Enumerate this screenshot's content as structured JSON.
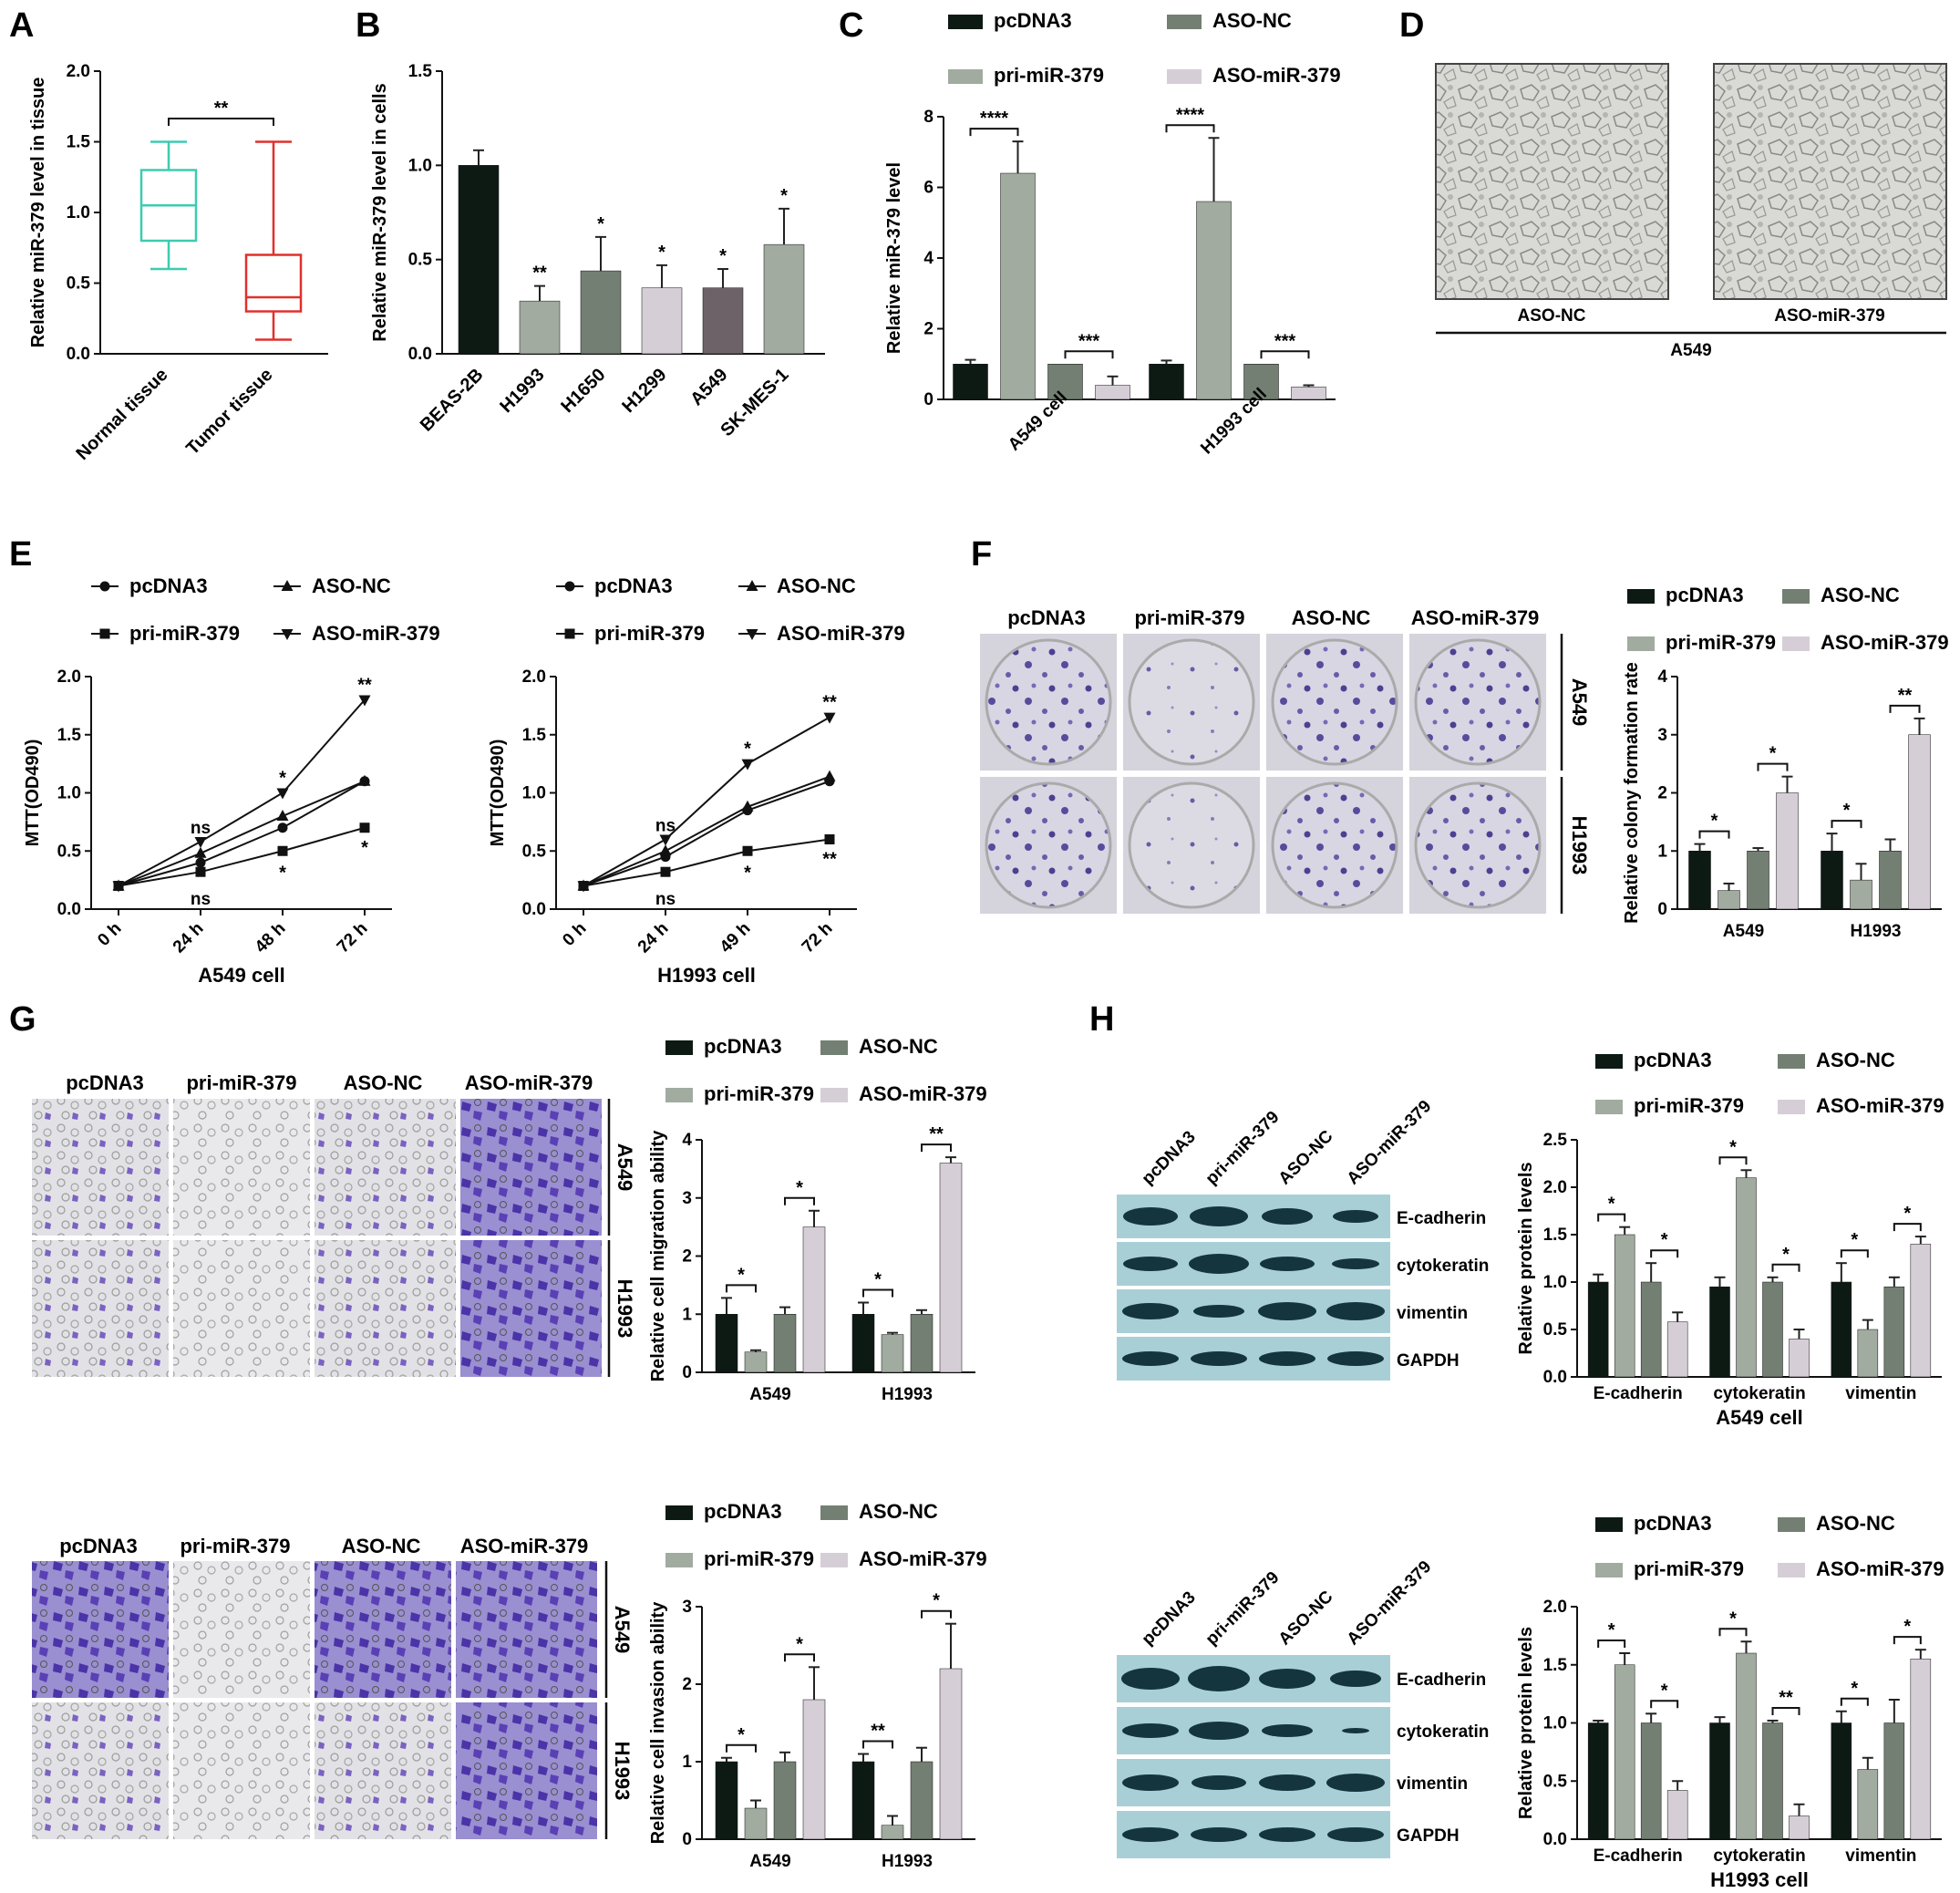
{
  "panels": {
    "A": {
      "label": "A"
    },
    "B": {
      "label": "B"
    },
    "C": {
      "label": "C"
    },
    "D": {
      "label": "D",
      "images": [
        "ASO-NC",
        "ASO-miR-379"
      ],
      "group": "A549"
    },
    "E": {
      "label": "E"
    },
    "F": {
      "label": "F",
      "image_cols": [
        "pcDNA3",
        "pri-miR-379",
        "ASO-NC",
        "ASO-miR-379"
      ],
      "image_rows": [
        "A549",
        "H1993"
      ]
    },
    "G": {
      "label": "G",
      "image_cols": [
        "pcDNA3",
        "pri-miR-379",
        "ASO-NC",
        "ASO-miR-379"
      ],
      "image_rows": [
        "A549",
        "H1993"
      ]
    },
    "G2": {
      "image_cols": [
        "pcDNA3",
        "pri-miR-379",
        "ASO-NC",
        "ASO-miR-379"
      ],
      "image_rows": [
        "A549",
        "H1993"
      ]
    },
    "H": {
      "label": "H",
      "lanes": [
        "pcDNA3",
        "pri-miR-379",
        "ASO-NC",
        "ASO-miR-379"
      ],
      "bands": [
        "E-cadherin",
        "cytokeratin",
        "vimentin",
        "GAPDH"
      ]
    }
  },
  "colors": {
    "pcDNA3": "#0d1a14",
    "ASO-NC": "#737f72",
    "pri-miR-379": "#a1aba0",
    "ASO-miR-379": "#d6ced6",
    "A549bar": "#6c6268",
    "tealbox": "#3ecbb0",
    "redbox": "#e0302c"
  },
  "chart_data": [
    {
      "id": "A",
      "type": "box",
      "ylabel": "Relative miR-379 level in tissue",
      "ylim": [
        0,
        2.0
      ],
      "yticks": [
        "0.0",
        "0.5",
        "1.0",
        "1.5",
        "2.0"
      ],
      "categories": [
        "Normal tissue",
        "Tumor tissue"
      ],
      "boxes": [
        {
          "min": 0.6,
          "q1": 0.8,
          "median": 1.05,
          "q3": 1.3,
          "max": 1.5
        },
        {
          "min": 0.1,
          "q1": 0.3,
          "median": 0.4,
          "q3": 0.7,
          "max": 1.5
        }
      ],
      "sig": "**"
    },
    {
      "id": "B",
      "type": "bar",
      "ylabel": "Relative miR-379 level in cells",
      "ylim": [
        0,
        1.5
      ],
      "yticks": [
        "0.0",
        "0.5",
        "1.0",
        "1.5"
      ],
      "categories": [
        "BEAS-2B",
        "H1993",
        "H1650",
        "H1299",
        "A549",
        "SK-MES-1"
      ],
      "values": [
        1.0,
        0.28,
        0.44,
        0.35,
        0.35,
        0.58
      ],
      "errors": [
        0.08,
        0.08,
        0.18,
        0.12,
        0.1,
        0.19
      ],
      "sig": [
        "",
        "**",
        "*",
        "*",
        "*",
        "*"
      ]
    },
    {
      "id": "C",
      "type": "bar",
      "ylabel": "Relative miR-379 level",
      "ylim": [
        0,
        8
      ],
      "yticks": [
        "0",
        "2",
        "4",
        "6",
        "8"
      ],
      "groups": [
        "A549 cell",
        "H1993 cell"
      ],
      "series": [
        {
          "name": "pcDNA3",
          "values": [
            1.0,
            1.0
          ],
          "errors": [
            0.12,
            0.1
          ]
        },
        {
          "name": "pri-miR-379",
          "values": [
            6.4,
            5.6
          ],
          "errors": [
            0.9,
            1.8
          ]
        },
        {
          "name": "ASO-NC",
          "values": [
            1.0,
            1.0
          ],
          "errors": [
            0,
            0
          ]
        },
        {
          "name": "ASO-miR-379",
          "values": [
            0.4,
            0.35
          ],
          "errors": [
            0.25,
            0.05
          ]
        }
      ],
      "legend": [
        "pcDNA3",
        "ASO-NC",
        "pri-miR-379",
        "ASO-miR-379"
      ],
      "sig": [
        "****",
        "***",
        "****",
        "***"
      ]
    },
    {
      "id": "E1",
      "type": "line",
      "ylabel": "MTT(OD490)",
      "xlabel": "A549 cell",
      "ylim": [
        0,
        2.0
      ],
      "yticks": [
        "0.0",
        "0.5",
        "1.0",
        "1.5",
        "2.0"
      ],
      "x": [
        "0 h",
        "24 h",
        "48 h",
        "72 h"
      ],
      "series": [
        {
          "name": "pcDNA3",
          "values": [
            0.2,
            0.4,
            0.7,
            1.1
          ]
        },
        {
          "name": "pri-miR-379",
          "values": [
            0.2,
            0.32,
            0.5,
            0.7
          ]
        },
        {
          "name": "ASO-NC",
          "values": [
            0.2,
            0.48,
            0.8,
            1.1
          ]
        },
        {
          "name": "ASO-miR-379",
          "values": [
            0.2,
            0.58,
            1.0,
            1.8
          ]
        }
      ],
      "annotations": [
        "ns",
        "*",
        "**",
        "ns",
        "*",
        "*"
      ]
    },
    {
      "id": "E2",
      "type": "line",
      "ylabel": "MTT(OD490)",
      "xlabel": "H1993 cell",
      "ylim": [
        0,
        2.0
      ],
      "yticks": [
        "0.0",
        "0.5",
        "1.0",
        "1.5",
        "2.0"
      ],
      "x": [
        "0 h",
        "24 h",
        "49 h",
        "72 h"
      ],
      "series": [
        {
          "name": "pcDNA3",
          "values": [
            0.2,
            0.45,
            0.85,
            1.1
          ]
        },
        {
          "name": "pri-miR-379",
          "values": [
            0.2,
            0.32,
            0.5,
            0.6
          ]
        },
        {
          "name": "ASO-NC",
          "values": [
            0.2,
            0.5,
            0.88,
            1.14
          ]
        },
        {
          "name": "ASO-miR-379",
          "values": [
            0.2,
            0.6,
            1.25,
            1.65
          ]
        }
      ],
      "annotations": [
        "ns",
        "*",
        "**",
        "ns",
        "*",
        "**"
      ]
    },
    {
      "id": "F",
      "type": "bar",
      "ylabel": "Relative colony formation rate",
      "ylim": [
        0,
        4
      ],
      "yticks": [
        "0",
        "1",
        "2",
        "3",
        "4"
      ],
      "groups": [
        "A549",
        "H1993"
      ],
      "series": [
        {
          "name": "pcDNA3",
          "values": [
            1.0,
            1.0
          ],
          "errors": [
            0.12,
            0.3
          ]
        },
        {
          "name": "pri-miR-379",
          "values": [
            0.32,
            0.5
          ],
          "errors": [
            0.12,
            0.28
          ]
        },
        {
          "name": "ASO-NC",
          "values": [
            1.0,
            1.0
          ],
          "errors": [
            0.05,
            0.2
          ]
        },
        {
          "name": "ASO-miR-379",
          "values": [
            2.0,
            3.0
          ],
          "errors": [
            0.28,
            0.28
          ]
        }
      ],
      "legend": [
        "pcDNA3",
        "ASO-NC",
        "pri-miR-379",
        "ASO-miR-379"
      ],
      "sig": [
        "*",
        "*",
        "*",
        "**"
      ]
    },
    {
      "id": "G1",
      "type": "bar",
      "ylabel": "Relative cell migration ability",
      "ylim": [
        0,
        4
      ],
      "yticks": [
        "0",
        "1",
        "2",
        "3",
        "4"
      ],
      "groups": [
        "A549",
        "H1993"
      ],
      "series": [
        {
          "name": "pcDNA3",
          "values": [
            1.0,
            1.0
          ],
          "errors": [
            0.28,
            0.2
          ]
        },
        {
          "name": "pri-miR-379",
          "values": [
            0.35,
            0.65
          ],
          "errors": [
            0.03,
            0.03
          ]
        },
        {
          "name": "ASO-NC",
          "values": [
            1.0,
            1.0
          ],
          "errors": [
            0.12,
            0.07
          ]
        },
        {
          "name": "ASO-miR-379",
          "values": [
            2.5,
            3.6
          ],
          "errors": [
            0.28,
            0.1
          ]
        }
      ],
      "legend": [
        "pcDNA3",
        "ASO-NC",
        "pri-miR-379",
        "ASO-miR-379"
      ],
      "sig": [
        "*",
        "*",
        "*",
        "**"
      ]
    },
    {
      "id": "G2",
      "type": "bar",
      "ylabel": "Relative cell invasion ability",
      "ylim": [
        0,
        3
      ],
      "yticks": [
        "0",
        "1",
        "2",
        "3"
      ],
      "groups": [
        "A549",
        "H1993"
      ],
      "series": [
        {
          "name": "pcDNA3",
          "values": [
            1.0,
            1.0
          ],
          "errors": [
            0.05,
            0.1
          ]
        },
        {
          "name": "pri-miR-379",
          "values": [
            0.4,
            0.18
          ],
          "errors": [
            0.1,
            0.12
          ]
        },
        {
          "name": "ASO-NC",
          "values": [
            1.0,
            1.0
          ],
          "errors": [
            0.12,
            0.18
          ]
        },
        {
          "name": "ASO-miR-379",
          "values": [
            1.8,
            2.2
          ],
          "errors": [
            0.42,
            0.58
          ]
        }
      ],
      "legend": [
        "pcDNA3",
        "ASO-NC",
        "pri-miR-379",
        "ASO-miR-379"
      ],
      "sig": [
        "*",
        "*",
        "**",
        "*"
      ]
    },
    {
      "id": "H1",
      "type": "bar",
      "ylabel": "Relative protein levels",
      "xlabel": "A549 cell",
      "ylim": [
        0,
        2.5
      ],
      "yticks": [
        "0.0",
        "0.5",
        "1.0",
        "1.5",
        "2.0",
        "2.5"
      ],
      "groups": [
        "E-cadherin",
        "cytokeratin",
        "vimentin"
      ],
      "series": [
        {
          "name": "pcDNA3",
          "values": [
            1.0,
            0.95,
            1.0
          ],
          "errors": [
            0.08,
            0.1,
            0.2
          ]
        },
        {
          "name": "pri-miR-379",
          "values": [
            1.5,
            2.1,
            0.5
          ],
          "errors": [
            0.08,
            0.08,
            0.1
          ]
        },
        {
          "name": "ASO-NC",
          "values": [
            1.0,
            1.0,
            0.95
          ],
          "errors": [
            0.2,
            0.05,
            0.1
          ]
        },
        {
          "name": "ASO-miR-379",
          "values": [
            0.58,
            0.4,
            1.4
          ],
          "errors": [
            0.1,
            0.1,
            0.08
          ]
        }
      ],
      "legend": [
        "pcDNA3",
        "ASO-NC",
        "pri-miR-379",
        "ASO-miR-379"
      ],
      "sig": [
        "*",
        "*",
        "*",
        "*",
        "*",
        "*"
      ]
    },
    {
      "id": "H2",
      "type": "bar",
      "ylabel": "Relative protein levels",
      "xlabel": "H1993 cell",
      "ylim": [
        0,
        2.0
      ],
      "yticks": [
        "0.0",
        "0.5",
        "1.0",
        "1.5",
        "2.0"
      ],
      "groups": [
        "E-cadherin",
        "cytokeratin",
        "vimentin"
      ],
      "series": [
        {
          "name": "pcDNA3",
          "values": [
            1.0,
            1.0,
            1.0
          ],
          "errors": [
            0.02,
            0.05,
            0.1
          ]
        },
        {
          "name": "pri-miR-379",
          "values": [
            1.5,
            1.6,
            0.6
          ],
          "errors": [
            0.1,
            0.1,
            0.1
          ]
        },
        {
          "name": "ASO-NC",
          "values": [
            1.0,
            1.0,
            1.0
          ],
          "errors": [
            0.08,
            0.02,
            0.2
          ]
        },
        {
          "name": "ASO-miR-379",
          "values": [
            0.42,
            0.2,
            1.55
          ],
          "errors": [
            0.08,
            0.1,
            0.08
          ]
        }
      ],
      "legend": [
        "pcDNA3",
        "ASO-NC",
        "pri-miR-379",
        "ASO-miR-379"
      ],
      "sig": [
        "*",
        "*",
        "*",
        "**",
        "*",
        "*"
      ]
    }
  ]
}
